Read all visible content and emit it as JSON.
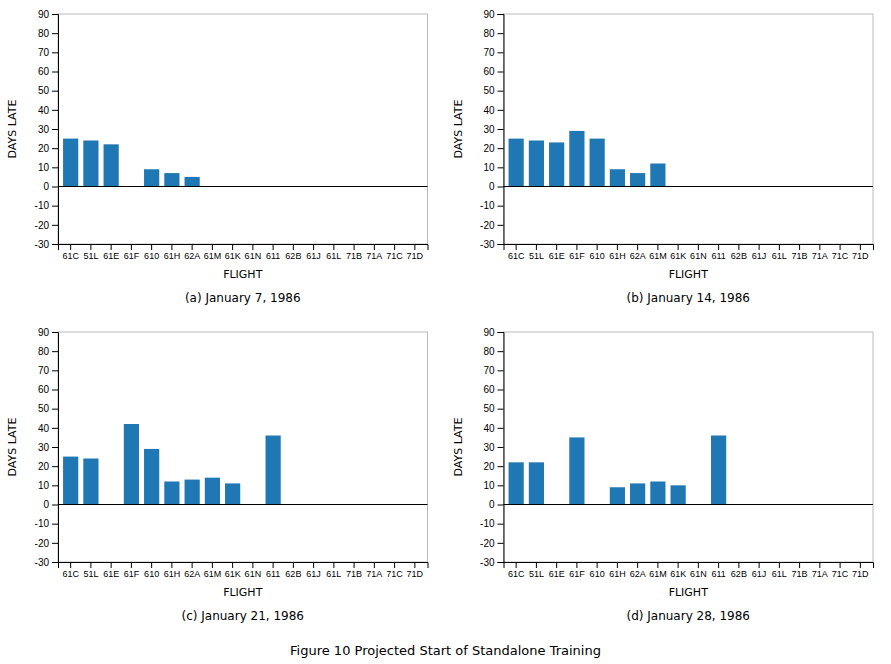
{
  "title": "Figure 10  Projected Start of Standalone Training",
  "chart_data": [
    {
      "type": "bar",
      "title": "(a) January 7, 1986",
      "categories": [
        "61C",
        "51L",
        "61E",
        "61F",
        "610",
        "61H",
        "62A",
        "61M",
        "61K",
        "61N",
        "611",
        "62B",
        "61J",
        "61L",
        "71B",
        "71A",
        "71C",
        "71D"
      ],
      "values": [
        25,
        24,
        22,
        0,
        9,
        7,
        5,
        0,
        0,
        0,
        0,
        0,
        0,
        0,
        0,
        0,
        0,
        0
      ],
      "xlabel": "FLIGHT",
      "ylabel": "DAYS LATE",
      "ylim": [
        -30,
        90
      ],
      "yticks": [
        -30,
        -20,
        -10,
        0,
        10,
        20,
        30,
        40,
        50,
        60,
        70,
        80,
        90
      ],
      "grid": false
    },
    {
      "type": "bar",
      "title": "(b) January 14, 1986",
      "categories": [
        "61C",
        "51L",
        "61E",
        "61F",
        "610",
        "61H",
        "62A",
        "61M",
        "61K",
        "61N",
        "611",
        "62B",
        "61J",
        "61L",
        "71B",
        "71A",
        "71C",
        "71D"
      ],
      "values": [
        25,
        24,
        23,
        29,
        25,
        9,
        7,
        12,
        0,
        0,
        0,
        0,
        0,
        0,
        0,
        0,
        0,
        0
      ],
      "xlabel": "FLIGHT",
      "ylabel": "DAYS LATE",
      "ylim": [
        -30,
        90
      ],
      "yticks": [
        -30,
        -20,
        -10,
        0,
        10,
        20,
        30,
        40,
        50,
        60,
        70,
        80,
        90
      ],
      "grid": false
    },
    {
      "type": "bar",
      "title": "(c) January 21, 1986",
      "categories": [
        "61C",
        "51L",
        "61E",
        "61F",
        "610",
        "61H",
        "62A",
        "61M",
        "61K",
        "61N",
        "611",
        "62B",
        "61J",
        "61L",
        "71B",
        "71A",
        "71C",
        "71D"
      ],
      "values": [
        25,
        24,
        0,
        42,
        29,
        12,
        13,
        14,
        11,
        0,
        36,
        0,
        0,
        0,
        0,
        0,
        0,
        0
      ],
      "xlabel": "FLIGHT",
      "ylabel": "DAYS LATE",
      "ylim": [
        -30,
        90
      ],
      "yticks": [
        -30,
        -20,
        -10,
        0,
        10,
        20,
        30,
        40,
        50,
        60,
        70,
        80,
        90
      ],
      "grid": false
    },
    {
      "type": "bar",
      "title": "(d) January 28, 1986",
      "categories": [
        "61C",
        "51L",
        "61E",
        "61F",
        "610",
        "61H",
        "62A",
        "61M",
        "61K",
        "61N",
        "611",
        "62B",
        "61J",
        "61L",
        "71B",
        "71A",
        "71C",
        "71D"
      ],
      "values": [
        22,
        22,
        0,
        35,
        0,
        9,
        11,
        12,
        10,
        0,
        36,
        0,
        0,
        0,
        0,
        0,
        0,
        0
      ],
      "xlabel": "FLIGHT",
      "ylabel": "DAYS LATE",
      "ylim": [
        -30,
        90
      ],
      "yticks": [
        -30,
        -20,
        -10,
        0,
        10,
        20,
        30,
        40,
        50,
        60,
        70,
        80,
        90
      ],
      "grid": false
    }
  ]
}
